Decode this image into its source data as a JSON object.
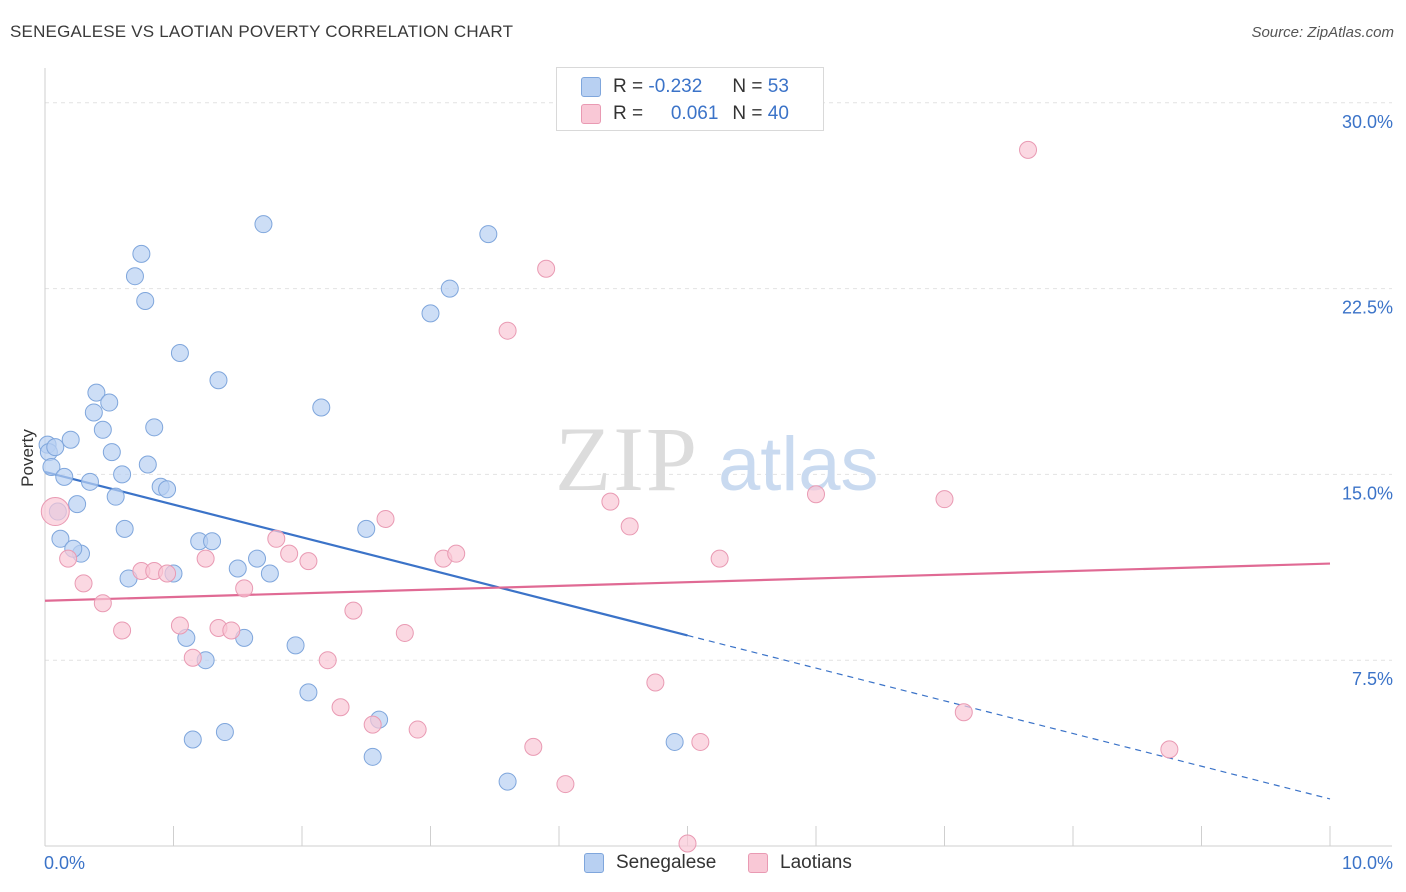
{
  "header": {
    "title": "SENEGALESE VS LAOTIAN POVERTY CORRELATION CHART",
    "source": "Source: ZipAtlas.com"
  },
  "legend": {
    "r_label": "R =",
    "n_label": "N =",
    "rows": [
      {
        "r": "-0.232",
        "n": "53",
        "color": "#b8d0f2",
        "border": "#7fa6dc"
      },
      {
        "r": "0.061",
        "n": "40",
        "color": "#f9c8d6",
        "border": "#e99ab3"
      }
    ]
  },
  "bottom_legend": {
    "items": [
      {
        "label": "Senegalese",
        "color": "#b8d0f2",
        "border": "#7fa6dc"
      },
      {
        "label": "Laotians",
        "color": "#f9c8d6",
        "border": "#e99ab3"
      }
    ]
  },
  "chart_data": {
    "type": "scatter",
    "ylabel": "Poverty",
    "xlim": [
      0,
      10
    ],
    "ylim": [
      0,
      31
    ],
    "x_tick_labels": [
      {
        "value": 0,
        "label": "0.0%"
      },
      {
        "value": 10,
        "label": "10.0%"
      }
    ],
    "y_tick_labels": [
      {
        "value": 7.5,
        "label": "7.5%"
      },
      {
        "value": 15,
        "label": "15.0%"
      },
      {
        "value": 22.5,
        "label": "22.5%"
      },
      {
        "value": 30,
        "label": "30.0%"
      }
    ],
    "x_minor_ticks": [
      1,
      2,
      3,
      4,
      5,
      6,
      7,
      8,
      9,
      10
    ],
    "grid": true,
    "series": [
      {
        "name": "Senegalese",
        "color": "#b8d0f2",
        "stroke": "#7fa6dc",
        "line_color": "#3b73c8",
        "trend": {
          "x0": 0,
          "y0": 15.1,
          "x1": 5.0,
          "y1": 8.5,
          "dash_to_x": 10,
          "dash_to_y": 1.9
        },
        "points": [
          [
            0.02,
            16.2
          ],
          [
            0.03,
            15.9
          ],
          [
            0.05,
            15.3
          ],
          [
            0.1,
            13.5
          ],
          [
            0.15,
            14.9
          ],
          [
            0.2,
            16.4
          ],
          [
            0.25,
            13.8
          ],
          [
            0.28,
            11.8
          ],
          [
            0.35,
            14.7
          ],
          [
            0.38,
            17.5
          ],
          [
            0.4,
            18.3
          ],
          [
            0.45,
            16.8
          ],
          [
            0.5,
            17.9
          ],
          [
            0.52,
            15.9
          ],
          [
            0.55,
            14.1
          ],
          [
            0.6,
            15.0
          ],
          [
            0.62,
            12.8
          ],
          [
            0.65,
            10.8
          ],
          [
            0.7,
            23.0
          ],
          [
            0.75,
            23.9
          ],
          [
            0.78,
            22.0
          ],
          [
            0.8,
            15.4
          ],
          [
            0.85,
            16.9
          ],
          [
            0.9,
            14.5
          ],
          [
            0.95,
            14.4
          ],
          [
            1.0,
            11.0
          ],
          [
            1.05,
            19.9
          ],
          [
            1.1,
            8.4
          ],
          [
            1.15,
            4.3
          ],
          [
            1.2,
            12.3
          ],
          [
            1.25,
            7.5
          ],
          [
            1.3,
            12.3
          ],
          [
            1.35,
            18.8
          ],
          [
            1.4,
            4.6
          ],
          [
            1.5,
            11.2
          ],
          [
            1.55,
            8.4
          ],
          [
            1.65,
            11.6
          ],
          [
            1.7,
            25.1
          ],
          [
            1.75,
            11.0
          ],
          [
            1.95,
            8.1
          ],
          [
            2.05,
            6.2
          ],
          [
            2.15,
            17.7
          ],
          [
            2.5,
            12.8
          ],
          [
            2.55,
            3.6
          ],
          [
            2.6,
            5.1
          ],
          [
            3.0,
            21.5
          ],
          [
            3.15,
            22.5
          ],
          [
            3.45,
            24.7
          ],
          [
            3.6,
            2.6
          ],
          [
            4.9,
            4.2
          ],
          [
            0.12,
            12.4
          ],
          [
            0.22,
            12.0
          ],
          [
            0.08,
            16.1
          ]
        ]
      },
      {
        "name": "Laotians",
        "color": "#f9c8d6",
        "stroke": "#e99ab3",
        "line_color": "#e06a94",
        "trend": {
          "x0": 0,
          "y0": 9.9,
          "x1": 10,
          "y1": 11.4
        },
        "points": [
          [
            0.08,
            13.5
          ],
          [
            0.18,
            11.6
          ],
          [
            0.3,
            10.6
          ],
          [
            0.45,
            9.8
          ],
          [
            0.6,
            8.7
          ],
          [
            0.75,
            11.1
          ],
          [
            0.85,
            11.1
          ],
          [
            0.95,
            11.0
          ],
          [
            1.05,
            8.9
          ],
          [
            1.15,
            7.6
          ],
          [
            1.25,
            11.6
          ],
          [
            1.35,
            8.8
          ],
          [
            1.45,
            8.7
          ],
          [
            1.55,
            10.4
          ],
          [
            1.8,
            12.4
          ],
          [
            1.9,
            11.8
          ],
          [
            2.05,
            11.5
          ],
          [
            2.2,
            7.5
          ],
          [
            2.3,
            5.6
          ],
          [
            2.4,
            9.5
          ],
          [
            2.55,
            4.9
          ],
          [
            2.65,
            13.2
          ],
          [
            2.8,
            8.6
          ],
          [
            2.9,
            4.7
          ],
          [
            3.1,
            11.6
          ],
          [
            3.2,
            11.8
          ],
          [
            3.6,
            20.8
          ],
          [
            3.8,
            4.0
          ],
          [
            3.9,
            23.3
          ],
          [
            4.05,
            2.5
          ],
          [
            4.4,
            13.9
          ],
          [
            4.55,
            12.9
          ],
          [
            4.75,
            6.6
          ],
          [
            5.0,
            0.1
          ],
          [
            5.1,
            4.2
          ],
          [
            5.25,
            11.6
          ],
          [
            6.0,
            14.2
          ],
          [
            7.0,
            14.0
          ],
          [
            7.15,
            5.4
          ],
          [
            7.65,
            28.1
          ]
        ]
      },
      {
        "name": "Laotians-extra",
        "color": "#f9c8d6",
        "stroke": "#e99ab3",
        "points": [
          [
            8.75,
            3.9
          ]
        ]
      }
    ]
  }
}
